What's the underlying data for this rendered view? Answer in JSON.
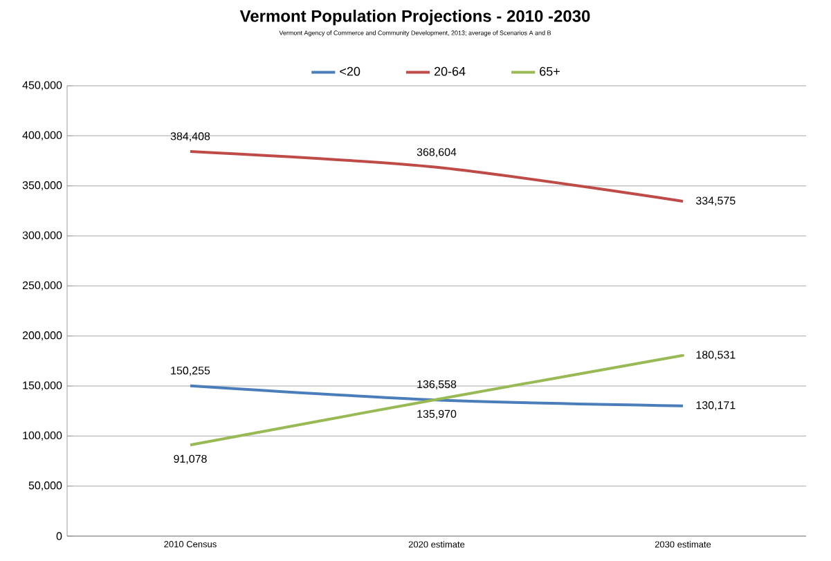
{
  "chart_data": {
    "type": "line",
    "title": "Vermont Population Projections - 2010 -2030",
    "subtitle": "Vermont Agency of Commerce and Community Development, 2013; average of Scenarios A and B",
    "categories": [
      "2010 Census",
      "2020 estimate",
      "2030 estimate"
    ],
    "series": [
      {
        "name": "<20",
        "color": "#4a7ebb",
        "values": [
          150255,
          135970,
          130171
        ],
        "value_labels": [
          "150,255",
          "135,970",
          "130,171"
        ]
      },
      {
        "name": "20-64",
        "color": "#be4b48",
        "values": [
          384408,
          368604,
          334575
        ],
        "value_labels": [
          "384,408",
          "368,604",
          "334,575"
        ]
      },
      {
        "name": "65+",
        "color": "#98b954",
        "values": [
          91078,
          136558,
          180531
        ],
        "value_labels": [
          "91,078",
          "136,558",
          "180,531"
        ]
      }
    ],
    "ylim": [
      0,
      450000
    ],
    "yticks": [
      {
        "value": 0,
        "label": "0"
      },
      {
        "value": 50000,
        "label": "50,000"
      },
      {
        "value": 100000,
        "label": "100,000"
      },
      {
        "value": 150000,
        "label": "150,000"
      },
      {
        "value": 200000,
        "label": "200,000"
      },
      {
        "value": 250000,
        "label": "250,000"
      },
      {
        "value": 300000,
        "label": "300,000"
      },
      {
        "value": 350000,
        "label": "350,000"
      },
      {
        "value": 400000,
        "label": "400,000"
      },
      {
        "value": 450000,
        "label": "450,000"
      }
    ],
    "grid": "y",
    "legend": "top",
    "marker": "none",
    "line_style": "solid"
  }
}
